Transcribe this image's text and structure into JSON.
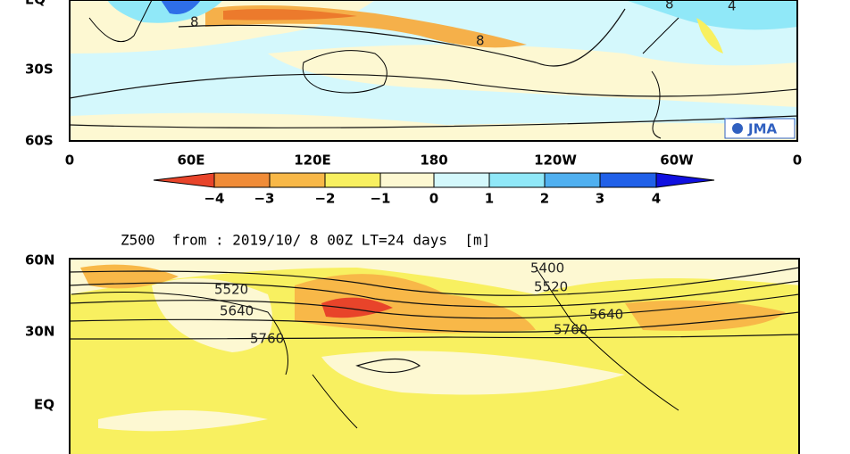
{
  "top_map": {
    "lat_labels": [
      "EQ",
      "30S",
      "60S"
    ],
    "lon_labels": [
      "0",
      "60E",
      "120E",
      "180",
      "120W",
      "60W",
      "0"
    ],
    "contour_labels": [
      "8",
      "8",
      "8",
      "4"
    ],
    "logo": "JMA"
  },
  "colorbar": {
    "labels": [
      "−4",
      "−3",
      "−2",
      "−1",
      "0",
      "1",
      "2",
      "3",
      "4"
    ]
  },
  "bottom_map": {
    "title": "Z500  from : 2019/10/ 8 00Z LT=24 days  [m]",
    "lat_labels": [
      "60N",
      "30N",
      "EQ"
    ],
    "contour_labels": [
      "5520",
      "5640",
      "5760",
      "5400",
      "5520",
      "5640",
      "5760"
    ]
  }
}
